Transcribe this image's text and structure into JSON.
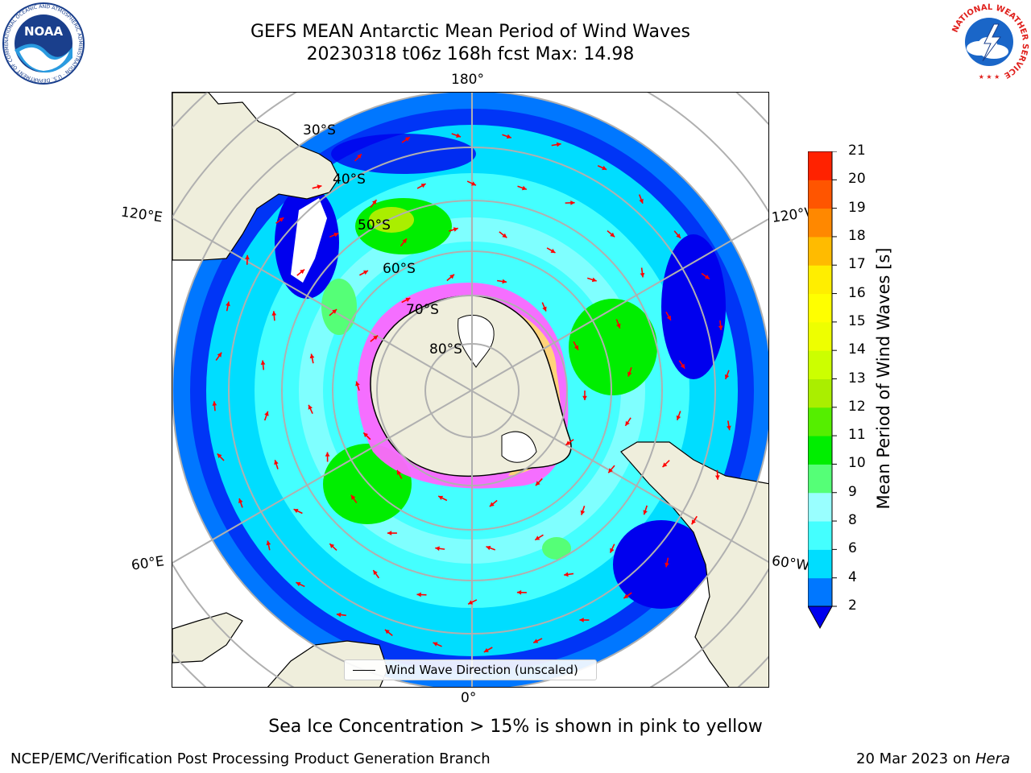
{
  "title": {
    "line1": "GEFS MEAN Antarctic Mean Period of Wind Waves",
    "line2": "20230318 t06z 168h fcst   Max: 14.98"
  },
  "map": {
    "projection": "south polar stereographic",
    "lon_labels": {
      "top": "180°",
      "bottom": "0°",
      "upper_left": "120°E",
      "upper_right": "120°W",
      "lower_left": "60°E",
      "lower_right": "60°W"
    },
    "lat_labels": [
      "30°S",
      "40°S",
      "50°S",
      "60°S",
      "70°S",
      "80°S"
    ],
    "legend_label": "Wind Wave Direction (unscaled)",
    "arrow_color": "#ff0000",
    "land_color": "#efeedc",
    "sea_ice_colors": [
      "#ff66ff",
      "#ffffff",
      "#ffd37a"
    ]
  },
  "colorbar": {
    "label": "Mean Period of Wind Waves [s]",
    "ticks": [
      "2",
      "4",
      "6",
      "8",
      "9",
      "10",
      "11",
      "12",
      "13",
      "14",
      "15",
      "16",
      "17",
      "18",
      "19",
      "20",
      "21"
    ],
    "colors": [
      "#0077ff",
      "#00ddff",
      "#44ffff",
      "#99ffff",
      "#55ff77",
      "#00ee00",
      "#55ee00",
      "#aaee00",
      "#ccff00",
      "#eeff00",
      "#ffff00",
      "#ffee00",
      "#ffbb00",
      "#ff8800",
      "#ff5500",
      "#ff2200"
    ],
    "extend_color": "#0000ee"
  },
  "note": "Sea Ice Concentration > 15% is shown in pink to yellow",
  "footer": {
    "left": "NCEP/EMC/Verification Post Processing Product Generation Branch",
    "right_date": "20 Mar 2023 on ",
    "right_machine": "Hera"
  },
  "logos": {
    "noaa": "NOAA",
    "noaa_ring": "NATIONAL OCEANIC AND ATMOSPHERIC ADMINISTRATION · U.S. DEPARTMENT OF COMMERCE",
    "nws_ring": "NATIONAL WEATHER SERVICE"
  }
}
